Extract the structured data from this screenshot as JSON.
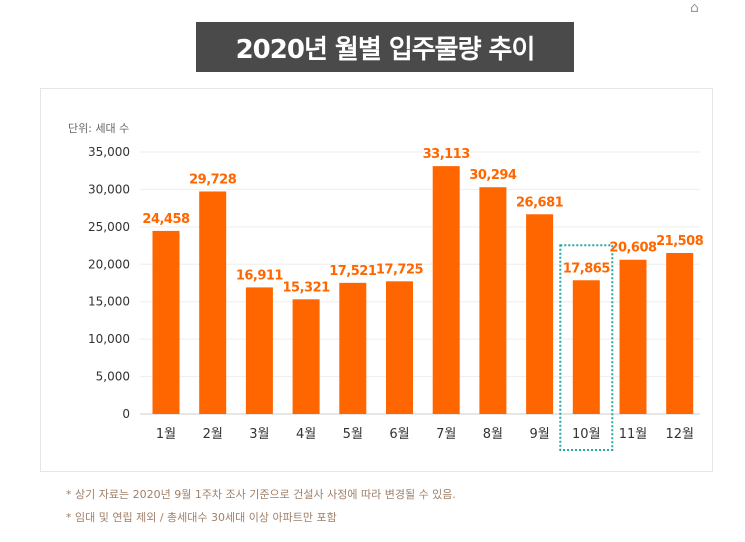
{
  "chart_data": {
    "type": "bar",
    "title": "2020년 월별 입주물량 추이",
    "unit_label": "단위: 세대 수",
    "categories": [
      "1월",
      "2월",
      "3월",
      "4월",
      "5월",
      "6월",
      "7월",
      "8월",
      "9월",
      "10월",
      "11월",
      "12월"
    ],
    "values": [
      24458,
      29728,
      16911,
      15321,
      17521,
      17725,
      33113,
      30294,
      26681,
      17865,
      20608,
      21508
    ],
    "data_labels": [
      "24,458",
      "29,728",
      "16,911",
      "15,321",
      "17,521",
      "17,725",
      "33,113",
      "30,294",
      "26,681",
      "17,865",
      "20,608",
      "21,508"
    ],
    "yticks": [
      0,
      5000,
      10000,
      15000,
      20000,
      25000,
      30000,
      35000
    ],
    "ytick_labels": [
      "0",
      "5,000",
      "10,000",
      "15,000",
      "20,000",
      "25,000",
      "30,000",
      "35,000"
    ],
    "ylim": [
      0,
      35000
    ],
    "grid": true,
    "highlight": "10월",
    "bar_color": "#ff6600",
    "highlight_border_color": "#2aa6a0"
  },
  "notes": [
    "* 상기 자료는 2020년 9월 1주차 조사 기준으로 건설사 사정에 따라 변경될 수 있음.",
    "* 임대 및 연립 제외 / 총세대수 30세대 이상 아파트만 포함"
  ]
}
